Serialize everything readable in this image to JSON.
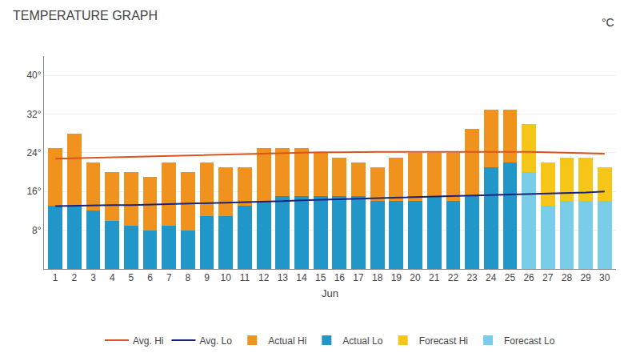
{
  "chart_data": {
    "type": "bar",
    "title": "TEMPERATURE GRAPH",
    "xlabel": "Jun",
    "annotations": [
      "°C"
    ],
    "x": [
      1,
      2,
      3,
      4,
      5,
      6,
      7,
      8,
      9,
      10,
      11,
      12,
      13,
      14,
      15,
      16,
      17,
      18,
      19,
      20,
      21,
      22,
      23,
      24,
      25,
      26,
      27,
      28,
      29,
      30
    ],
    "xlim": [
      0.4,
      30.6
    ],
    "xticks": [
      1,
      2,
      3,
      4,
      5,
      6,
      7,
      8,
      9,
      10,
      11,
      12,
      13,
      14,
      15,
      16,
      17,
      18,
      19,
      20,
      21,
      22,
      23,
      24,
      25,
      26,
      27,
      28,
      29,
      30
    ],
    "ylim": [
      0,
      44
    ],
    "yticks": [
      {
        "value": 8,
        "label": "8°"
      },
      {
        "value": 16,
        "label": "16°"
      },
      {
        "value": 24,
        "label": "24°"
      },
      {
        "value": 32,
        "label": "32°"
      },
      {
        "value": 40,
        "label": "40°"
      }
    ],
    "grid": true,
    "legend": "bottom",
    "series": [
      {
        "name": "Avg. Hi",
        "type": "line",
        "color": "#d9541e",
        "values": [
          22.8,
          22.9,
          23.0,
          23.1,
          23.1,
          23.2,
          23.3,
          23.4,
          23.5,
          23.6,
          23.7,
          23.8,
          23.9,
          24.0,
          24.1,
          24.1,
          24.2,
          24.2,
          24.2,
          24.2,
          24.2,
          24.3,
          24.3,
          24.3,
          24.3,
          24.2,
          24.1,
          24.0,
          23.9,
          23.8
        ]
      },
      {
        "name": "Avg. Lo",
        "type": "line",
        "color": "#1a237e",
        "values": [
          13.0,
          13.1,
          13.1,
          13.2,
          13.2,
          13.3,
          13.4,
          13.4,
          13.5,
          13.6,
          13.7,
          13.8,
          14.0,
          14.2,
          14.3,
          14.4,
          14.5,
          14.6,
          14.7,
          14.8,
          14.9,
          15.0,
          15.1,
          15.2,
          15.4,
          15.5,
          15.6,
          15.7,
          15.8,
          16.0
        ]
      },
      {
        "name": "Actual Hi",
        "type": "bar",
        "color": "#f0921e",
        "values": [
          25,
          28,
          22,
          20,
          20,
          19,
          22,
          20,
          22,
          21,
          21,
          25,
          25,
          25,
          24,
          23,
          22,
          21,
          23,
          24,
          24,
          24,
          29,
          33,
          33,
          null,
          null,
          null,
          null,
          null
        ]
      },
      {
        "name": "Actual Lo",
        "type": "bar",
        "color": "#2196c8",
        "values": [
          13,
          13,
          12,
          10,
          9,
          8,
          9,
          8,
          11,
          11,
          13,
          14,
          15,
          15,
          15,
          15,
          15,
          14,
          14,
          14,
          15,
          14,
          15,
          21,
          22,
          null,
          null,
          null,
          null,
          null
        ]
      },
      {
        "name": "Forecast Hi",
        "type": "bar",
        "color": "#f5c518",
        "values": [
          null,
          null,
          null,
          null,
          null,
          null,
          null,
          null,
          null,
          null,
          null,
          null,
          null,
          null,
          null,
          null,
          null,
          null,
          null,
          null,
          null,
          null,
          null,
          null,
          null,
          30,
          22,
          23,
          23,
          21
        ]
      },
      {
        "name": "Forecast Lo",
        "type": "bar",
        "color": "#79cde8",
        "values": [
          null,
          null,
          null,
          null,
          null,
          null,
          null,
          null,
          null,
          null,
          null,
          null,
          null,
          null,
          null,
          null,
          null,
          null,
          null,
          null,
          null,
          null,
          null,
          null,
          null,
          20,
          13,
          14,
          14,
          14
        ]
      }
    ]
  }
}
